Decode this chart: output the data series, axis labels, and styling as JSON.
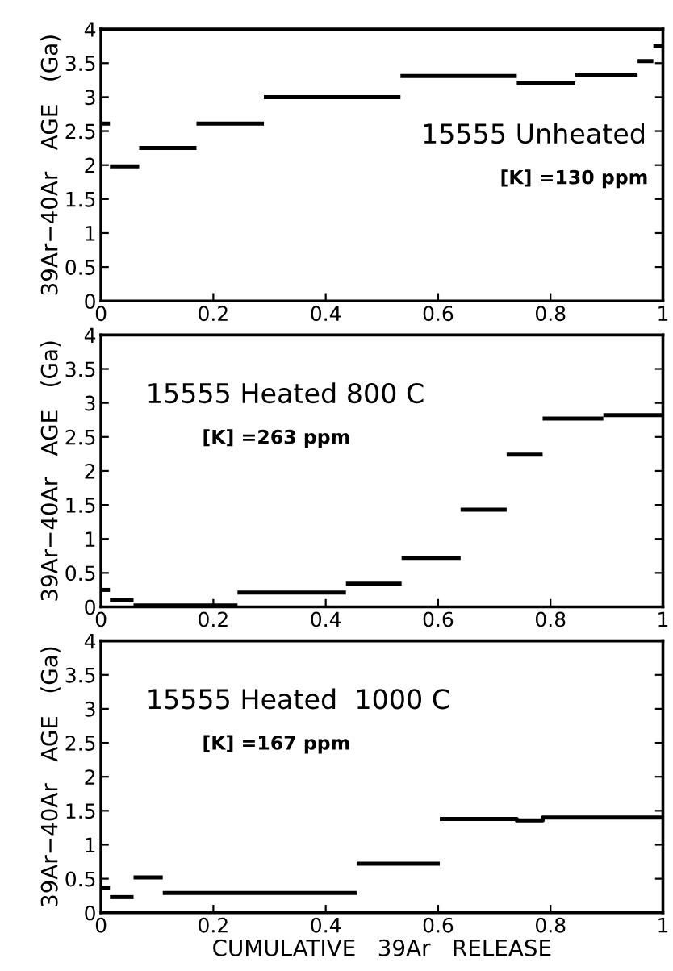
{
  "chart_data": [
    {
      "type": "line",
      "title": "15555 Unheated",
      "subtitle": "[K] =130 ppm",
      "ylabel": "39Ar−40Ar   AGE   (Ga)",
      "xlim": [
        0,
        1
      ],
      "xticks": [
        0,
        0.2,
        0.4,
        0.6,
        0.8,
        1
      ],
      "ylim": [
        0,
        4
      ],
      "yticks": [
        0,
        0.5,
        1,
        1.5,
        2,
        2.5,
        3,
        3.5,
        4
      ],
      "series": [
        {
          "color": "#000000",
          "x": [
            0,
            0.016
          ],
          "values": [
            2.61,
            2.61
          ]
        },
        {
          "color": "#000000",
          "x": [
            0.016,
            0.068
          ],
          "values": [
            1.98,
            1.98
          ]
        },
        {
          "color": "#000000",
          "x": [
            0.068,
            0.17
          ],
          "values": [
            2.25,
            2.25
          ]
        },
        {
          "color": "#000000",
          "x": [
            0.17,
            0.29
          ],
          "values": [
            2.61,
            2.61
          ]
        },
        {
          "color": "#000000",
          "x": [
            0.29,
            0.533
          ],
          "values": [
            3.0,
            3.0
          ]
        },
        {
          "color": "#000000",
          "x": [
            0.533,
            0.74
          ],
          "values": [
            3.31,
            3.31
          ]
        },
        {
          "color": "#000000",
          "x": [
            0.74,
            0.844
          ],
          "values": [
            3.2,
            3.2
          ]
        },
        {
          "color": "#000000",
          "x": [
            0.844,
            0.955
          ],
          "values": [
            3.33,
            3.33
          ]
        },
        {
          "color": "#000000",
          "x": [
            0.955,
            0.983
          ],
          "values": [
            3.53,
            3.53
          ]
        },
        {
          "color": "#000000",
          "x": [
            0.983,
            1.0
          ],
          "values": [
            3.75,
            3.75
          ]
        }
      ]
    },
    {
      "type": "line",
      "title": "15555 Heated 800 C",
      "subtitle": "[K] =263 ppm",
      "ylabel": "39Ar−40Ar   AGE   (Ga)",
      "xlim": [
        0,
        1
      ],
      "xticks": [
        0,
        0.2,
        0.4,
        0.6,
        0.8,
        1
      ],
      "ylim": [
        0,
        4
      ],
      "yticks": [
        0,
        0.5,
        1,
        1.5,
        2,
        2.5,
        3,
        3.5,
        4
      ],
      "series": [
        {
          "color": "#000000",
          "x": [
            0,
            0.016
          ],
          "values": [
            0.25,
            0.25
          ]
        },
        {
          "color": "#000000",
          "x": [
            0.016,
            0.058
          ],
          "values": [
            0.1,
            0.1
          ]
        },
        {
          "color": "#000000",
          "x": [
            0.058,
            0.243
          ],
          "values": [
            0.02,
            0.02
          ]
        },
        {
          "color": "#000000",
          "x": [
            0.243,
            0.436
          ],
          "values": [
            0.21,
            0.21
          ]
        },
        {
          "color": "#000000",
          "x": [
            0.436,
            0.535
          ],
          "values": [
            0.34,
            0.34
          ]
        },
        {
          "color": "#000000",
          "x": [
            0.535,
            0.64
          ],
          "values": [
            0.72,
            0.72
          ]
        },
        {
          "color": "#000000",
          "x": [
            0.64,
            0.722
          ],
          "values": [
            1.43,
            1.43
          ]
        },
        {
          "color": "#000000",
          "x": [
            0.722,
            0.786
          ],
          "values": [
            2.24,
            2.24
          ]
        },
        {
          "color": "#000000",
          "x": [
            0.786,
            0.894
          ],
          "values": [
            2.77,
            2.77
          ]
        },
        {
          "color": "#000000",
          "x": [
            0.894,
            1.0
          ],
          "values": [
            2.82,
            2.82
          ]
        }
      ]
    },
    {
      "type": "line",
      "title": "15555 Heated  1000 C",
      "subtitle": "[K] =167 ppm",
      "ylabel": "39Ar−40Ar   AGE   (Ga)",
      "xlabel": "CUMULATIVE   39Ar   RELEASE",
      "xlim": [
        0,
        1
      ],
      "xticks": [
        0,
        0.2,
        0.4,
        0.6,
        0.8,
        1
      ],
      "ylim": [
        0,
        4
      ],
      "yticks": [
        0,
        0.5,
        1,
        1.5,
        2,
        2.5,
        3,
        3.5,
        4
      ],
      "series": [
        {
          "color": "#000000",
          "x": [
            0,
            0.016
          ],
          "values": [
            0.37,
            0.37
          ]
        },
        {
          "color": "#000000",
          "x": [
            0.016,
            0.058
          ],
          "values": [
            0.23,
            0.23
          ]
        },
        {
          "color": "#000000",
          "x": [
            0.058,
            0.11
          ],
          "values": [
            0.52,
            0.52
          ]
        },
        {
          "color": "#000000",
          "x": [
            0.11,
            0.455
          ],
          "values": [
            0.29,
            0.29
          ]
        },
        {
          "color": "#000000",
          "x": [
            0.455,
            0.603
          ],
          "values": [
            0.72,
            0.72
          ]
        },
        {
          "color": "#000000",
          "x": [
            0.603,
            0.74,
            0.74,
            0.786,
            0.786,
            1.0
          ],
          "values": [
            1.38,
            1.38,
            1.36,
            1.36,
            1.4,
            1.4
          ]
        }
      ]
    }
  ]
}
